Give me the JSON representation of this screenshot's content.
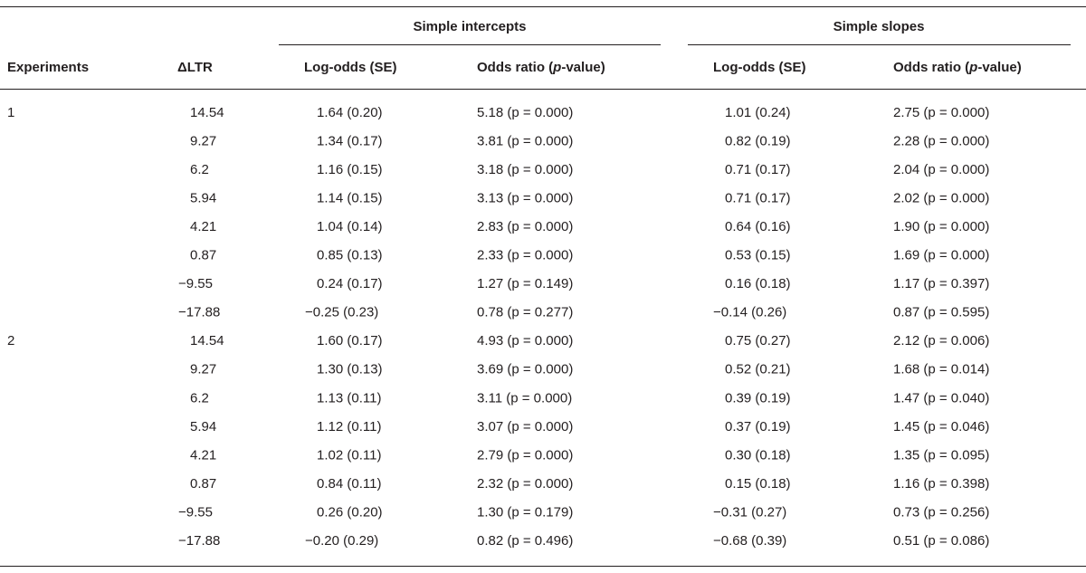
{
  "table": {
    "group_headers": [
      "Simple intercepts",
      "Simple slopes"
    ],
    "columns": [
      [
        "Experiments"
      ],
      [
        "ΔLTR"
      ],
      [
        "Log-odds (SE)"
      ],
      [
        "Odds ratio (",
        "p",
        "-value)"
      ],
      [
        "Log-odds (SE)"
      ],
      [
        "Odds ratio (",
        "p",
        "-value)"
      ]
    ],
    "groups": [
      {
        "experiment": "1",
        "rows": [
          [
            "14.54",
            "1.64 (0.20)",
            "5.18 (p = 0.000)",
            "1.01 (0.24)",
            "2.75 (p = 0.000)"
          ],
          [
            "9.27",
            "1.34 (0.17)",
            "3.81 (p = 0.000)",
            "0.82 (0.19)",
            "2.28 (p = 0.000)"
          ],
          [
            "6.2",
            "1.16 (0.15)",
            "3.18 (p = 0.000)",
            "0.71 (0.17)",
            "2.04 (p = 0.000)"
          ],
          [
            "5.94",
            "1.14 (0.15)",
            "3.13 (p = 0.000)",
            "0.71 (0.17)",
            "2.02 (p = 0.000)"
          ],
          [
            "4.21",
            "1.04 (0.14)",
            "2.83 (p = 0.000)",
            "0.64 (0.16)",
            "1.90 (p = 0.000)"
          ],
          [
            "0.87",
            "0.85 (0.13)",
            "2.33 (p = 0.000)",
            "0.53 (0.15)",
            "1.69 (p = 0.000)"
          ],
          [
            "−9.55",
            "0.24 (0.17)",
            "1.27 (p = 0.149)",
            "0.16 (0.18)",
            "1.17 (p = 0.397)"
          ],
          [
            "−17.88",
            "−0.25 (0.23)",
            "0.78 (p = 0.277)",
            "−0.14 (0.26)",
            "0.87 (p = 0.595)"
          ]
        ]
      },
      {
        "experiment": "2",
        "rows": [
          [
            "14.54",
            "1.60 (0.17)",
            "4.93 (p = 0.000)",
            "0.75 (0.27)",
            "2.12 (p = 0.006)"
          ],
          [
            "9.27",
            "1.30 (0.13)",
            "3.69 (p = 0.000)",
            "0.52 (0.21)",
            "1.68 (p = 0.014)"
          ],
          [
            "6.2",
            "1.13 (0.11)",
            "3.11 (p = 0.000)",
            "0.39 (0.19)",
            "1.47 (p = 0.040)"
          ],
          [
            "5.94",
            "1.12 (0.11)",
            "3.07 (p = 0.000)",
            "0.37 (0.19)",
            "1.45 (p = 0.046)"
          ],
          [
            "4.21",
            "1.02 (0.11)",
            "2.79 (p = 0.000)",
            "0.30 (0.18)",
            "1.35 (p = 0.095)"
          ],
          [
            "0.87",
            "0.84 (0.11)",
            "2.32 (p = 0.000)",
            "0.15 (0.18)",
            "1.16 (p = 0.398)"
          ],
          [
            "−9.55",
            "0.26 (0.20)",
            "1.30 (p = 0.179)",
            "−0.31 (0.27)",
            "0.73 (p = 0.256)"
          ],
          [
            "−17.88",
            "−0.20 (0.29)",
            "0.82 (p = 0.496)",
            "−0.68 (0.39)",
            "0.51 (p = 0.086)"
          ]
        ]
      }
    ]
  }
}
